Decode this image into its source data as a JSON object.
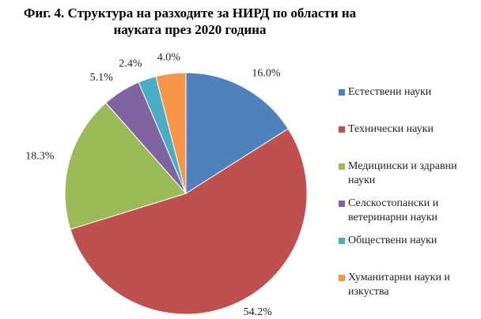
{
  "chart_data": {
    "type": "pie",
    "title": "Фиг. 4. Структура на разходите за НИРД по области на науката през 2020 година",
    "categories": [
      "Естествени науки",
      "Технически науки",
      "Медицински и здравни науки",
      "Селскостопански и ветеринарни науки",
      "Обществени науки",
      "Хуманитарни науки и изкуства"
    ],
    "values": [
      16,
      54.2,
      18.3,
      5.1,
      2.4,
      4
    ],
    "value_labels": [
      "16.0%",
      "54.2%",
      "18.3%",
      "5.1%",
      "2.4%",
      "4.0%"
    ],
    "colors": [
      "#4f81bd",
      "#c0504d",
      "#9bbb59",
      "#8064a2",
      "#4bacc6",
      "#f79646"
    ],
    "legend": "right"
  }
}
